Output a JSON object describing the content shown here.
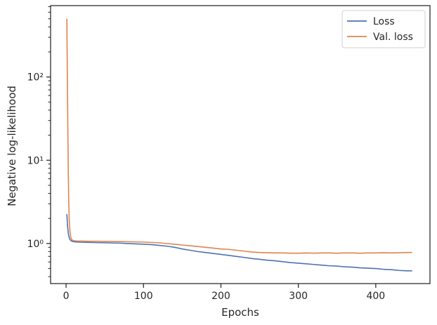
{
  "chart_data": {
    "type": "line",
    "title": "",
    "xlabel": "Epochs",
    "ylabel": "Negative log-likelihood",
    "xlim": [
      -20,
      470
    ],
    "ylim": [
      0.33,
      720
    ],
    "y_scale": "log",
    "grid": false,
    "legend_position": "top-right",
    "x_ticks": [
      0,
      100,
      200,
      300,
      400
    ],
    "x_tick_labels": [
      "0",
      "100",
      "200",
      "300",
      "400"
    ],
    "y_ticks": [
      1,
      10,
      100
    ],
    "y_tick_labels": [
      "10⁰",
      "10¹",
      "10²"
    ],
    "series": [
      {
        "name": "Loss",
        "color": "#4c72b0",
        "x": [
          1,
          2,
          3,
          4,
          5,
          6,
          7,
          8,
          10,
          12,
          15,
          20,
          30,
          40,
          50,
          60,
          70,
          80,
          90,
          100,
          110,
          120,
          130,
          140,
          150,
          160,
          170,
          180,
          190,
          200,
          210,
          220,
          230,
          240,
          250,
          260,
          270,
          280,
          290,
          300,
          310,
          320,
          330,
          340,
          350,
          360,
          370,
          380,
          390,
          400,
          410,
          420,
          430,
          440,
          447
        ],
        "y": [
          2.25,
          1.6,
          1.3,
          1.18,
          1.12,
          1.09,
          1.07,
          1.06,
          1.05,
          1.045,
          1.04,
          1.035,
          1.03,
          1.025,
          1.02,
          1.015,
          1.01,
          1.0,
          0.99,
          0.98,
          0.97,
          0.95,
          0.93,
          0.9,
          0.86,
          0.83,
          0.8,
          0.78,
          0.76,
          0.74,
          0.72,
          0.7,
          0.68,
          0.66,
          0.645,
          0.63,
          0.62,
          0.605,
          0.59,
          0.58,
          0.57,
          0.56,
          0.55,
          0.54,
          0.535,
          0.525,
          0.52,
          0.51,
          0.505,
          0.5,
          0.49,
          0.485,
          0.475,
          0.47,
          0.47
        ]
      },
      {
        "name": "Val. loss",
        "color": "#dd8452",
        "x": [
          1,
          1.5,
          2,
          2.5,
          3,
          3.5,
          4,
          5,
          6,
          7,
          8,
          10,
          12,
          15,
          20,
          30,
          40,
          50,
          60,
          70,
          80,
          90,
          100,
          110,
          120,
          130,
          140,
          150,
          160,
          170,
          180,
          190,
          200,
          210,
          220,
          230,
          240,
          250,
          260,
          270,
          280,
          290,
          300,
          310,
          320,
          330,
          340,
          350,
          360,
          370,
          380,
          390,
          400,
          410,
          420,
          430,
          440,
          447
        ],
        "y": [
          500,
          150,
          45,
          15,
          6,
          3,
          2,
          1.4,
          1.2,
          1.13,
          1.1,
          1.08,
          1.075,
          1.07,
          1.07,
          1.065,
          1.065,
          1.06,
          1.06,
          1.055,
          1.05,
          1.045,
          1.04,
          1.03,
          1.02,
          1.0,
          0.98,
          0.96,
          0.94,
          0.92,
          0.9,
          0.88,
          0.86,
          0.85,
          0.83,
          0.81,
          0.79,
          0.78,
          0.775,
          0.77,
          0.77,
          0.765,
          0.765,
          0.77,
          0.765,
          0.77,
          0.77,
          0.765,
          0.77,
          0.77,
          0.765,
          0.77,
          0.77,
          0.775,
          0.77,
          0.775,
          0.78,
          0.78
        ]
      }
    ]
  }
}
